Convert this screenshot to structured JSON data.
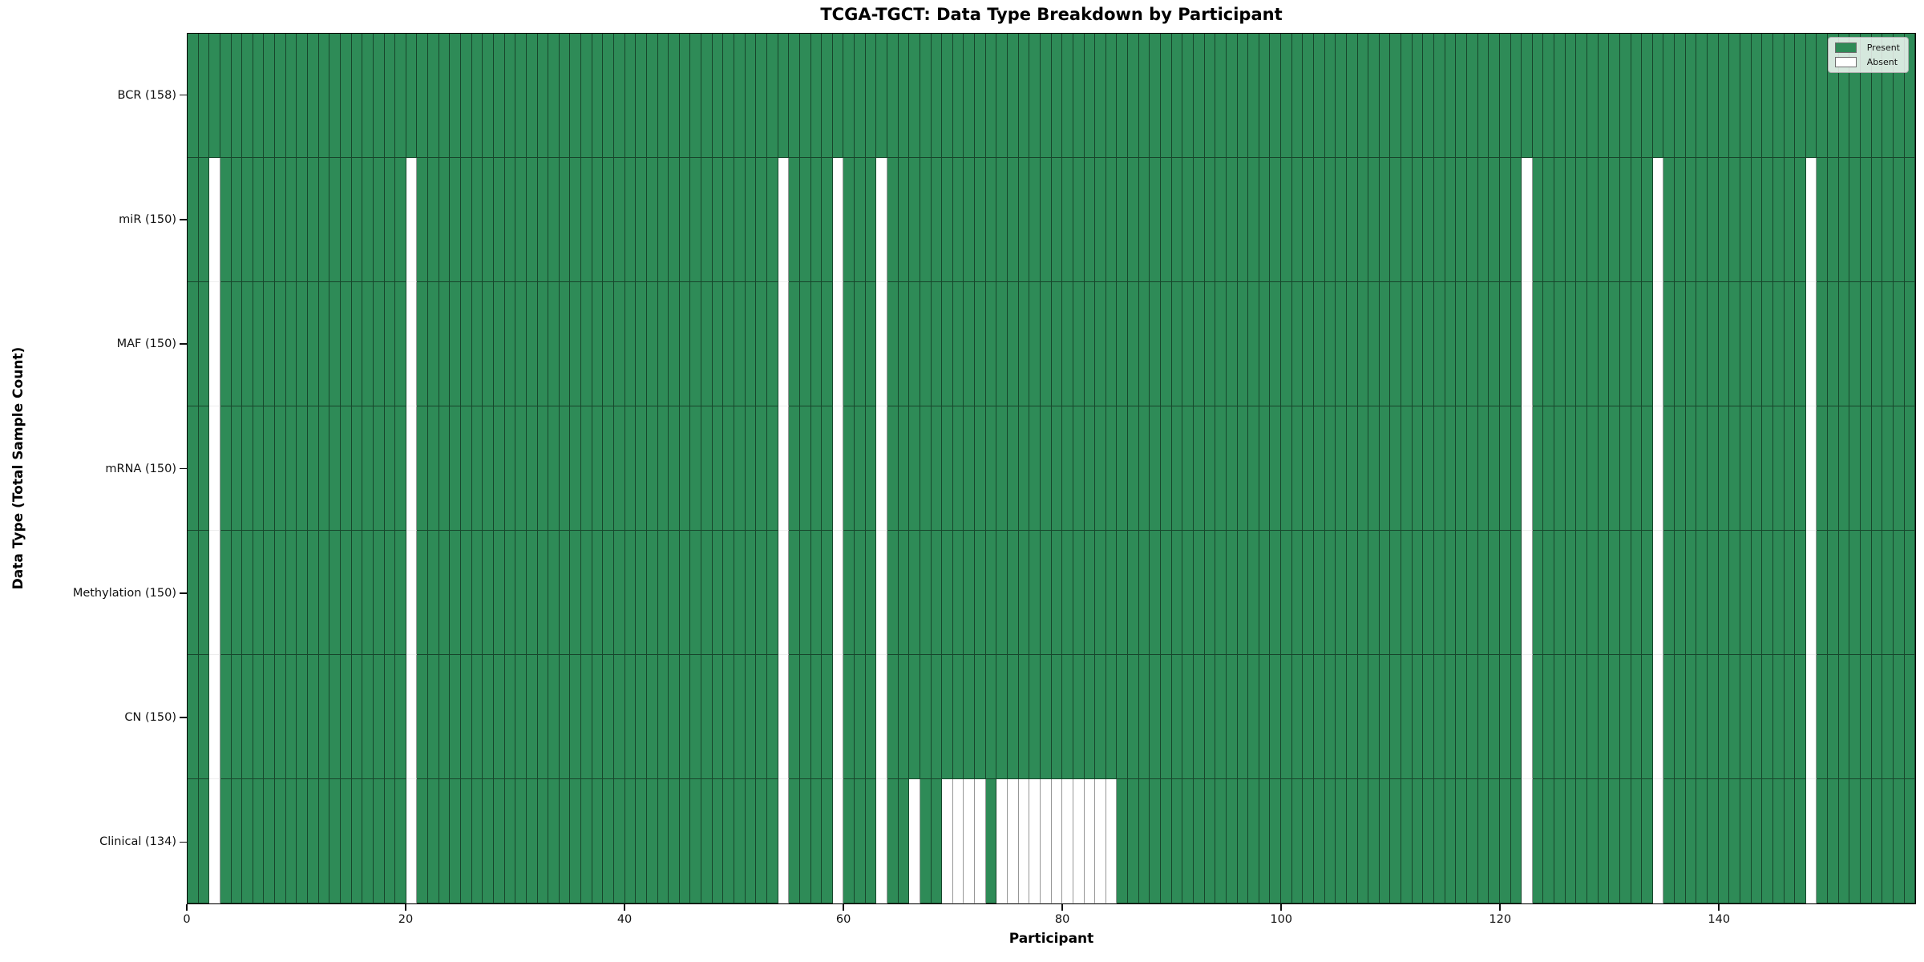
{
  "chart_data": {
    "type": "heatmap",
    "title": "TCGA-TGCT: Data Type Breakdown by Participant",
    "xlabel": "Participant",
    "ylabel": "Data Type (Total Sample Count)",
    "n_participants": 158,
    "x_ticks": [
      0,
      20,
      40,
      60,
      80,
      100,
      120,
      140
    ],
    "cell_states": [
      "present",
      "absent"
    ],
    "rows": [
      {
        "label": "BCR (158)",
        "data_type": "BCR",
        "count": 158,
        "absent_participants": []
      },
      {
        "label": "miR (150)",
        "data_type": "miR",
        "count": 150,
        "absent_participants": [
          2,
          20,
          54,
          59,
          63,
          122,
          134,
          148
        ]
      },
      {
        "label": "MAF (150)",
        "data_type": "MAF",
        "count": 150,
        "absent_participants": [
          2,
          20,
          54,
          59,
          63,
          122,
          134,
          148
        ]
      },
      {
        "label": "mRNA (150)",
        "data_type": "mRNA",
        "count": 150,
        "absent_participants": [
          2,
          20,
          54,
          59,
          63,
          122,
          134,
          148
        ]
      },
      {
        "label": "Methylation (150)",
        "data_type": "Methylation",
        "count": 150,
        "absent_participants": [
          2,
          20,
          54,
          59,
          63,
          122,
          134,
          148
        ]
      },
      {
        "label": "CN (150)",
        "data_type": "CN",
        "count": 150,
        "absent_participants": [
          2,
          20,
          54,
          59,
          63,
          122,
          134,
          148
        ]
      },
      {
        "label": "Clinical (134)",
        "data_type": "Clinical",
        "count": 134,
        "absent_participants": [
          2,
          20,
          54,
          59,
          63,
          66,
          69,
          70,
          71,
          72,
          74,
          75,
          76,
          77,
          78,
          79,
          80,
          81,
          82,
          83,
          84,
          122,
          134,
          148
        ]
      }
    ],
    "legend": [
      {
        "label": "Present",
        "color": "#2e8b57"
      },
      {
        "label": "Absent",
        "color": "#ffffff"
      }
    ],
    "colors": {
      "present": "#2e8b57",
      "absent": "#ffffff"
    },
    "legend_position": "upper right",
    "grid": "cell-borders"
  }
}
